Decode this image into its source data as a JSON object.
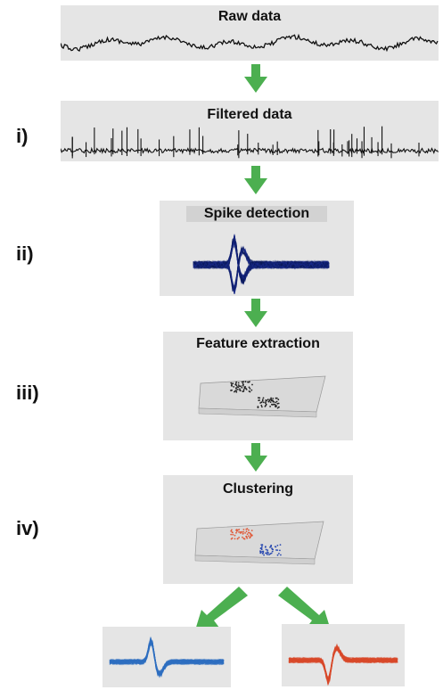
{
  "stages": {
    "raw": {
      "title": "Raw data"
    },
    "filtered": {
      "title": "Filtered data",
      "label": "i)"
    },
    "detection": {
      "title": "Spike detection",
      "label": "ii)"
    },
    "features": {
      "title": "Feature extraction",
      "label": "iii)"
    },
    "clustering": {
      "title": "Clustering",
      "label": "iv)"
    }
  },
  "colors": {
    "arrow": "#4caf50",
    "trace": "#111111",
    "spikes": "#1a2a8a",
    "cluster_red": "#e05a3a",
    "cluster_blue": "#2a4ab0",
    "unit_blue": "#2e6fc0",
    "unit_red": "#d94a2a",
    "panel_bg": "#e5e5e5"
  }
}
